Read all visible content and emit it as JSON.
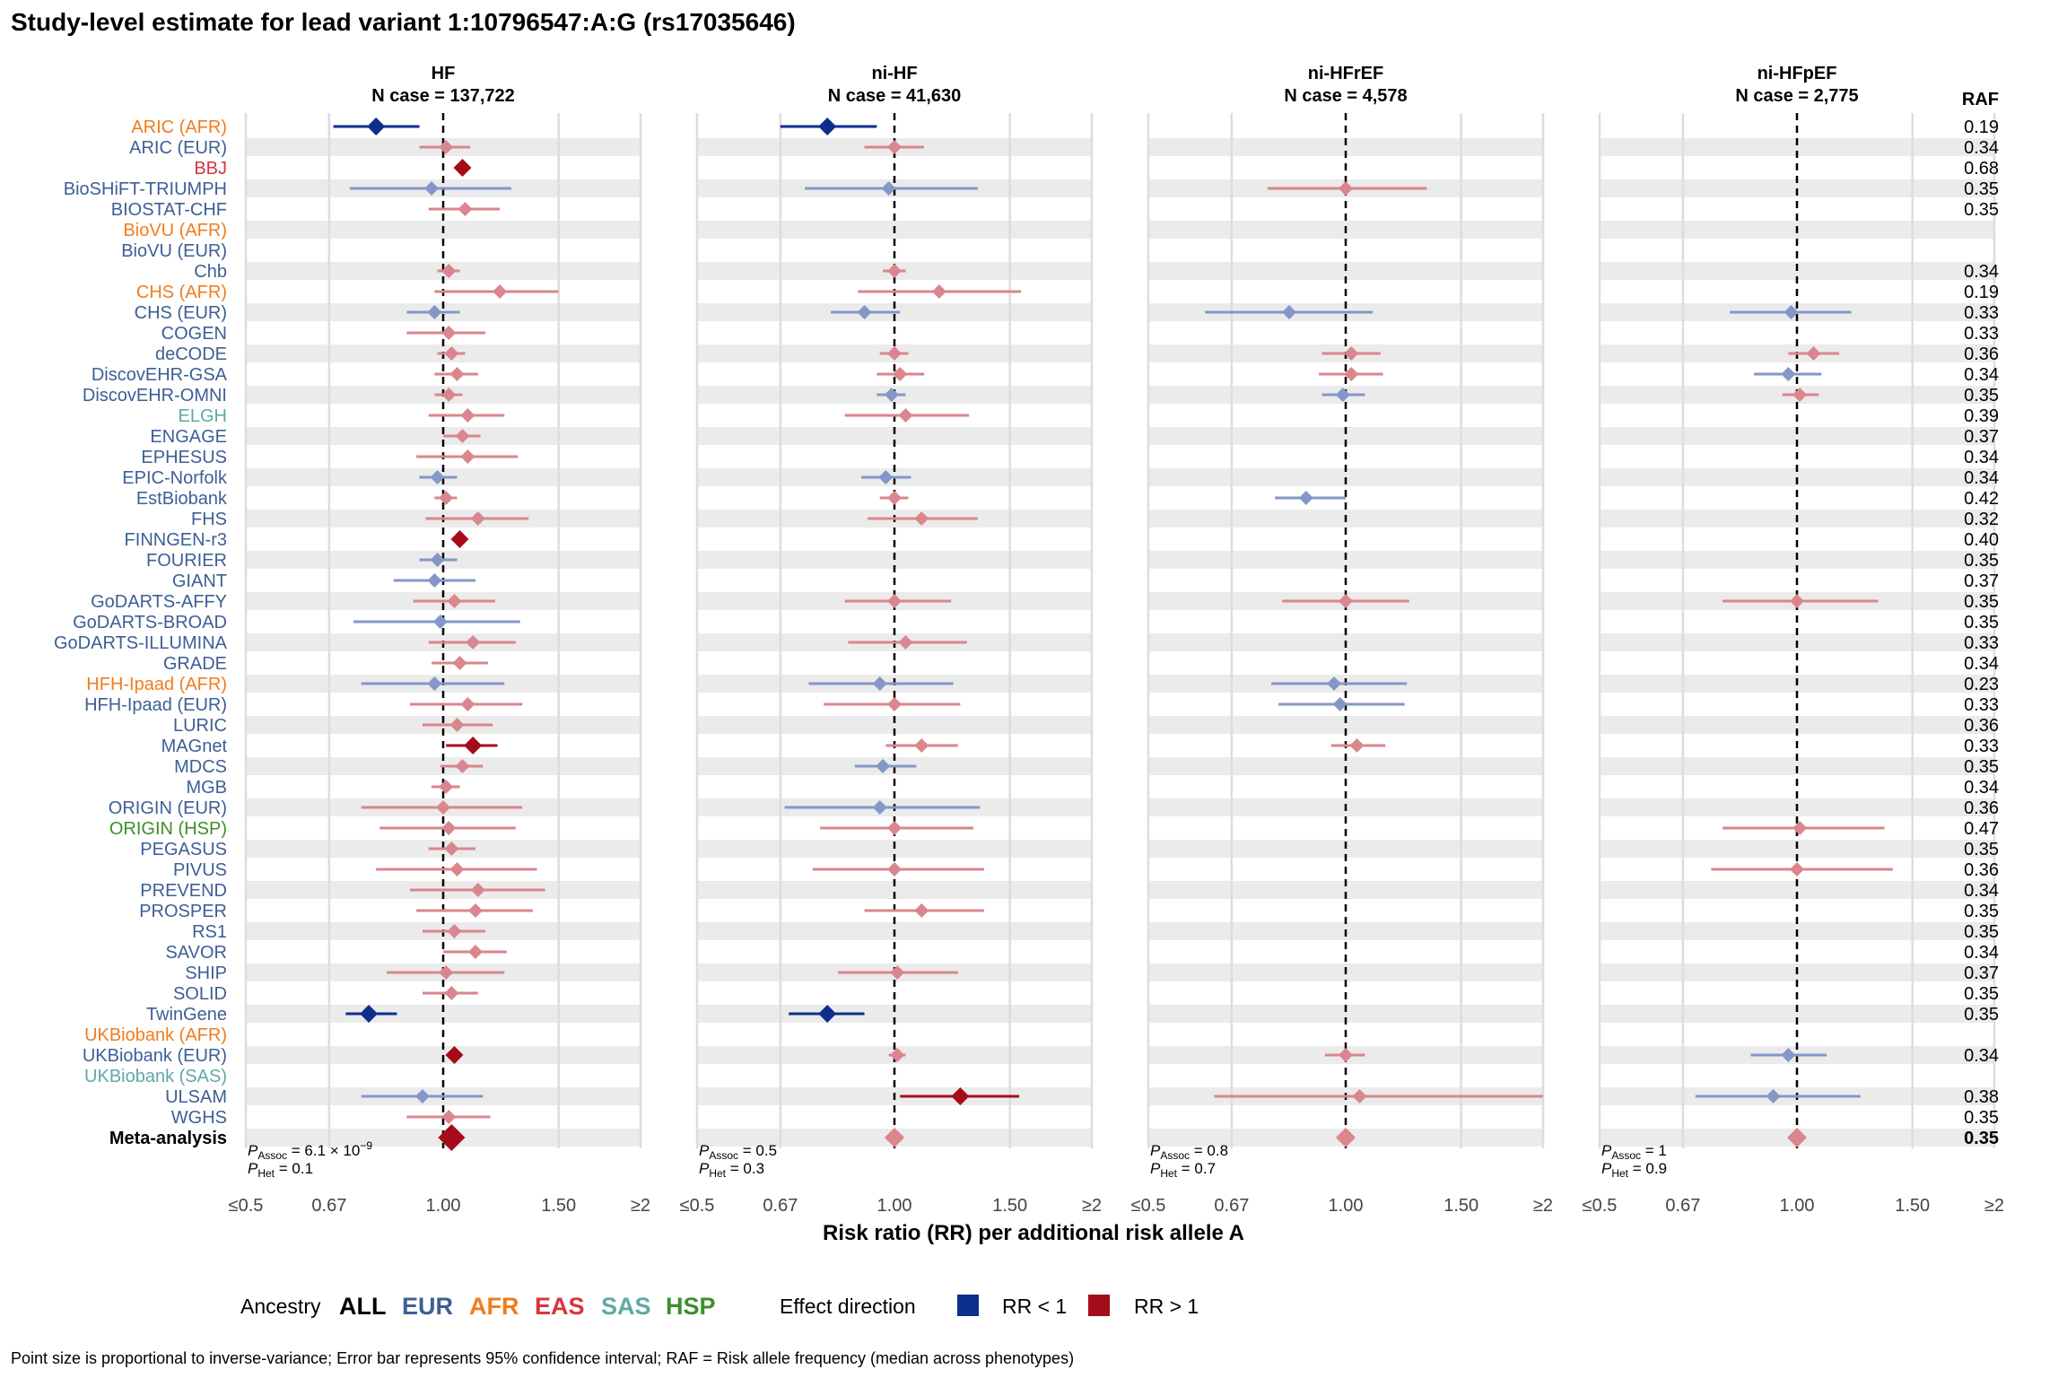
{
  "chart_data": {
    "type": "forest",
    "title": "Study-level estimate for lead variant 1:10796547:A:G (rs17035646)",
    "xlabel": "Risk ratio (RR) per additional risk allele A",
    "x_scale": "log",
    "xlim": [
      0.5,
      2
    ],
    "x_ticks": [
      "≤0.5",
      "0.67",
      "1.00",
      "1.50",
      "≥2"
    ],
    "x_tick_values": [
      0.5,
      0.67,
      1.0,
      1.5,
      2.0
    ],
    "reference_line": 1.0,
    "raf_header": "RAF",
    "ancestry_colors": {
      "ALL": "#000000",
      "EUR": "#3c5f96",
      "AFR": "#f07c1e",
      "EAS": "#d7353f",
      "SAS": "#5fa9a4",
      "HSP": "#3e8e2c"
    },
    "effect_colors": {
      "RR < 1": "#0c2f8c",
      "RR > 1": "#a50c19"
    },
    "studies": [
      {
        "label": "ARIC (AFR)",
        "ancestry": "AFR",
        "raf": "0.19"
      },
      {
        "label": "ARIC (EUR)",
        "ancestry": "EUR",
        "raf": "0.34"
      },
      {
        "label": "BBJ",
        "ancestry": "EAS",
        "raf": "0.68"
      },
      {
        "label": "BioSHiFT-TRIUMPH",
        "ancestry": "EUR",
        "raf": "0.35"
      },
      {
        "label": "BIOSTAT-CHF",
        "ancestry": "EUR",
        "raf": "0.35"
      },
      {
        "label": "BioVU (AFR)",
        "ancestry": "AFR",
        "raf": ""
      },
      {
        "label": "BioVU (EUR)",
        "ancestry": "EUR",
        "raf": ""
      },
      {
        "label": "Chb",
        "ancestry": "EUR",
        "raf": "0.34"
      },
      {
        "label": "CHS (AFR)",
        "ancestry": "AFR",
        "raf": "0.19"
      },
      {
        "label": "CHS (EUR)",
        "ancestry": "EUR",
        "raf": "0.33"
      },
      {
        "label": "COGEN",
        "ancestry": "EUR",
        "raf": "0.33"
      },
      {
        "label": "deCODE",
        "ancestry": "EUR",
        "raf": "0.36"
      },
      {
        "label": "DiscovEHR-GSA",
        "ancestry": "EUR",
        "raf": "0.34"
      },
      {
        "label": "DiscovEHR-OMNI",
        "ancestry": "EUR",
        "raf": "0.35"
      },
      {
        "label": "ELGH",
        "ancestry": "SAS",
        "raf": "0.39"
      },
      {
        "label": "ENGAGE",
        "ancestry": "EUR",
        "raf": "0.37"
      },
      {
        "label": "EPHESUS",
        "ancestry": "EUR",
        "raf": "0.34"
      },
      {
        "label": "EPIC-Norfolk",
        "ancestry": "EUR",
        "raf": "0.34"
      },
      {
        "label": "EstBiobank",
        "ancestry": "EUR",
        "raf": "0.42"
      },
      {
        "label": "FHS",
        "ancestry": "EUR",
        "raf": "0.32"
      },
      {
        "label": "FINNGEN-r3",
        "ancestry": "EUR",
        "raf": "0.40"
      },
      {
        "label": "FOURIER",
        "ancestry": "EUR",
        "raf": "0.35"
      },
      {
        "label": "GIANT",
        "ancestry": "EUR",
        "raf": "0.37"
      },
      {
        "label": "GoDARTS-AFFY",
        "ancestry": "EUR",
        "raf": "0.35"
      },
      {
        "label": "GoDARTS-BROAD",
        "ancestry": "EUR",
        "raf": "0.35"
      },
      {
        "label": "GoDARTS-ILLUMINA",
        "ancestry": "EUR",
        "raf": "0.33"
      },
      {
        "label": "GRADE",
        "ancestry": "EUR",
        "raf": "0.34"
      },
      {
        "label": "HFH-Ipaad (AFR)",
        "ancestry": "AFR",
        "raf": "0.23"
      },
      {
        "label": "HFH-Ipaad (EUR)",
        "ancestry": "EUR",
        "raf": "0.33"
      },
      {
        "label": "LURIC",
        "ancestry": "EUR",
        "raf": "0.36"
      },
      {
        "label": "MAGnet",
        "ancestry": "EUR",
        "raf": "0.33"
      },
      {
        "label": "MDCS",
        "ancestry": "EUR",
        "raf": "0.35"
      },
      {
        "label": "MGB",
        "ancestry": "EUR",
        "raf": "0.34"
      },
      {
        "label": "ORIGIN (EUR)",
        "ancestry": "EUR",
        "raf": "0.36"
      },
      {
        "label": "ORIGIN (HSP)",
        "ancestry": "HSP",
        "raf": "0.47"
      },
      {
        "label": "PEGASUS",
        "ancestry": "EUR",
        "raf": "0.35"
      },
      {
        "label": "PIVUS",
        "ancestry": "EUR",
        "raf": "0.36"
      },
      {
        "label": "PREVEND",
        "ancestry": "EUR",
        "raf": "0.34"
      },
      {
        "label": "PROSPER",
        "ancestry": "EUR",
        "raf": "0.35"
      },
      {
        "label": "RS1",
        "ancestry": "EUR",
        "raf": "0.35"
      },
      {
        "label": "SAVOR",
        "ancestry": "EUR",
        "raf": "0.34"
      },
      {
        "label": "SHIP",
        "ancestry": "EUR",
        "raf": "0.37"
      },
      {
        "label": "SOLID",
        "ancestry": "EUR",
        "raf": "0.35"
      },
      {
        "label": "TwinGene",
        "ancestry": "EUR",
        "raf": "0.35"
      },
      {
        "label": "UKBiobank (AFR)",
        "ancestry": "AFR",
        "raf": ""
      },
      {
        "label": "UKBiobank (EUR)",
        "ancestry": "EUR",
        "raf": "0.34"
      },
      {
        "label": "UKBiobank (SAS)",
        "ancestry": "SAS",
        "raf": ""
      },
      {
        "label": "ULSAM",
        "ancestry": "EUR",
        "raf": "0.38"
      },
      {
        "label": "WGHS",
        "ancestry": "EUR",
        "raf": "0.35"
      },
      {
        "label": "Meta-analysis",
        "ancestry": "ALL",
        "raf": "0.35"
      }
    ],
    "panels": [
      {
        "name": "HF",
        "n_case": "N case = 137,722",
        "p_assoc": "6.1 × 10",
        "p_assoc_exp": "−9",
        "p_het": "0.1",
        "rows": [
          [
            0,
            0.79,
            0.68,
            0.92,
            true
          ],
          [
            1,
            1.01,
            0.92,
            1.1,
            false
          ],
          [
            2,
            1.07,
            1.05,
            1.09,
            true
          ],
          [
            3,
            0.96,
            0.72,
            1.27,
            false
          ],
          [
            4,
            1.08,
            0.95,
            1.22,
            false
          ],
          [
            7,
            1.02,
            0.98,
            1.06,
            false
          ],
          [
            8,
            1.22,
            0.97,
            1.5,
            false
          ],
          [
            9,
            0.97,
            0.88,
            1.06,
            false
          ],
          [
            10,
            1.02,
            0.88,
            1.16,
            false
          ],
          [
            11,
            1.03,
            0.98,
            1.08,
            false
          ],
          [
            12,
            1.05,
            0.97,
            1.13,
            false
          ],
          [
            13,
            1.02,
            0.97,
            1.07,
            false
          ],
          [
            14,
            1.09,
            0.95,
            1.24,
            false
          ],
          [
            15,
            1.07,
            1.0,
            1.14,
            false
          ],
          [
            16,
            1.09,
            0.91,
            1.3,
            false
          ],
          [
            17,
            0.98,
            0.92,
            1.05,
            false
          ],
          [
            18,
            1.01,
            0.97,
            1.05,
            false
          ],
          [
            19,
            1.13,
            0.94,
            1.35,
            false
          ],
          [
            20,
            1.06,
            1.04,
            1.08,
            true
          ],
          [
            21,
            0.98,
            0.92,
            1.05,
            false
          ],
          [
            22,
            0.97,
            0.84,
            1.12,
            false
          ],
          [
            23,
            1.04,
            0.9,
            1.2,
            false
          ],
          [
            24,
            0.99,
            0.73,
            1.31,
            false
          ],
          [
            25,
            1.11,
            0.95,
            1.29,
            false
          ],
          [
            26,
            1.06,
            0.96,
            1.17,
            false
          ],
          [
            27,
            0.97,
            0.75,
            1.24,
            false
          ],
          [
            28,
            1.09,
            0.89,
            1.32,
            false
          ],
          [
            29,
            1.05,
            0.93,
            1.19,
            false
          ],
          [
            30,
            1.11,
            1.01,
            1.21,
            true
          ],
          [
            31,
            1.07,
            0.99,
            1.15,
            false
          ],
          [
            32,
            1.01,
            0.96,
            1.06,
            false
          ],
          [
            33,
            1.0,
            0.75,
            1.32,
            false
          ],
          [
            34,
            1.02,
            0.8,
            1.29,
            false
          ],
          [
            35,
            1.03,
            0.95,
            1.12,
            false
          ],
          [
            36,
            1.05,
            0.79,
            1.39,
            false
          ],
          [
            37,
            1.13,
            0.89,
            1.43,
            false
          ],
          [
            38,
            1.12,
            0.91,
            1.37,
            false
          ],
          [
            39,
            1.04,
            0.93,
            1.16,
            false
          ],
          [
            40,
            1.12,
            1.0,
            1.25,
            false
          ],
          [
            41,
            1.01,
            0.82,
            1.24,
            false
          ],
          [
            42,
            1.03,
            0.93,
            1.13,
            false
          ],
          [
            43,
            0.77,
            0.71,
            0.85,
            true
          ],
          [
            45,
            1.04,
            1.02,
            1.06,
            true
          ],
          [
            47,
            0.93,
            0.75,
            1.15,
            false
          ],
          [
            48,
            1.02,
            0.88,
            1.18,
            false
          ],
          [
            49,
            1.03,
            1.02,
            1.04,
            true
          ]
        ]
      },
      {
        "name": "ni-HF",
        "n_case": "N case = 41,630",
        "p_assoc": "0.5",
        "p_assoc_exp": "",
        "p_het": "0.3",
        "rows": [
          [
            0,
            0.79,
            0.67,
            0.94,
            true
          ],
          [
            1,
            1.0,
            0.9,
            1.11,
            false
          ],
          [
            3,
            0.98,
            0.73,
            1.34,
            false
          ],
          [
            7,
            1.0,
            0.96,
            1.04,
            false
          ],
          [
            8,
            1.17,
            0.88,
            1.56,
            false
          ],
          [
            9,
            0.9,
            0.8,
            1.02,
            false
          ],
          [
            11,
            1.0,
            0.95,
            1.05,
            false
          ],
          [
            12,
            1.02,
            0.94,
            1.11,
            false
          ],
          [
            13,
            0.99,
            0.94,
            1.04,
            false
          ],
          [
            14,
            1.04,
            0.84,
            1.3,
            false
          ],
          [
            17,
            0.97,
            0.89,
            1.06,
            false
          ],
          [
            18,
            1.0,
            0.95,
            1.05,
            false
          ],
          [
            19,
            1.1,
            0.91,
            1.34,
            false
          ],
          [
            23,
            1.0,
            0.84,
            1.22,
            false
          ],
          [
            25,
            1.04,
            0.85,
            1.29,
            false
          ],
          [
            27,
            0.95,
            0.74,
            1.23,
            false
          ],
          [
            28,
            1.0,
            0.78,
            1.26,
            false
          ],
          [
            30,
            1.1,
            0.97,
            1.25,
            false
          ],
          [
            31,
            0.96,
            0.87,
            1.08,
            false
          ],
          [
            33,
            0.95,
            0.68,
            1.35,
            false
          ],
          [
            34,
            1.0,
            0.77,
            1.32,
            false
          ],
          [
            36,
            1.0,
            0.75,
            1.37,
            false
          ],
          [
            38,
            1.1,
            0.9,
            1.37,
            false
          ],
          [
            41,
            1.01,
            0.82,
            1.25,
            false
          ],
          [
            43,
            0.79,
            0.69,
            0.9,
            true
          ],
          [
            45,
            1.01,
            0.98,
            1.04,
            false
          ],
          [
            47,
            1.26,
            1.02,
            1.55,
            true
          ],
          [
            49,
            1.0,
            0.99,
            1.01,
            false
          ]
        ]
      },
      {
        "name": "ni-HFrEF",
        "n_case": "N case = 4,578",
        "p_assoc": "0.8",
        "p_assoc_exp": "",
        "p_het": "0.7",
        "rows": [
          [
            3,
            1.0,
            0.76,
            1.33,
            false
          ],
          [
            9,
            0.82,
            0.61,
            1.1,
            false
          ],
          [
            11,
            1.02,
            0.92,
            1.13,
            false
          ],
          [
            12,
            1.02,
            0.91,
            1.14,
            false
          ],
          [
            13,
            0.99,
            0.92,
            1.07,
            false
          ],
          [
            18,
            0.87,
            0.78,
            1.0,
            false
          ],
          [
            23,
            1.0,
            0.8,
            1.25,
            false
          ],
          [
            27,
            0.96,
            0.77,
            1.24,
            false
          ],
          [
            28,
            0.98,
            0.79,
            1.23,
            false
          ],
          [
            30,
            1.04,
            0.95,
            1.15,
            false
          ],
          [
            45,
            1.0,
            0.93,
            1.07,
            false
          ],
          [
            47,
            1.05,
            0.63,
            2.0,
            false
          ],
          [
            49,
            1.0,
            0.97,
            1.03,
            false
          ]
        ]
      },
      {
        "name": "ni-HFpEF",
        "n_case": "N case = 2,775",
        "p_assoc": "1",
        "p_assoc_exp": "",
        "p_het": "0.9",
        "rows": [
          [
            9,
            0.98,
            0.79,
            1.21,
            false
          ],
          [
            11,
            1.06,
            0.97,
            1.16,
            false
          ],
          [
            12,
            0.97,
            0.86,
            1.09,
            false
          ],
          [
            13,
            1.01,
            0.95,
            1.08,
            false
          ],
          [
            23,
            1.0,
            0.77,
            1.33,
            false
          ],
          [
            34,
            1.01,
            0.77,
            1.36,
            false
          ],
          [
            36,
            1.0,
            0.74,
            1.4,
            false
          ],
          [
            45,
            0.97,
            0.85,
            1.11,
            false
          ],
          [
            47,
            0.92,
            0.7,
            1.25,
            false
          ],
          [
            49,
            1.0,
            0.97,
            1.03,
            false
          ]
        ]
      }
    ]
  },
  "legend": {
    "ancestry_label": "Ancestry",
    "ancestries": [
      "ALL",
      "EUR",
      "AFR",
      "EAS",
      "SAS",
      "HSP"
    ],
    "effect_label": "Effect direction",
    "effect_items": [
      "RR < 1",
      "RR > 1"
    ]
  },
  "footnote": "Point size is proportional to inverse-variance; Error bar represents 95% confidence interval; RAF = Risk allele frequency (median across phenotypes)"
}
